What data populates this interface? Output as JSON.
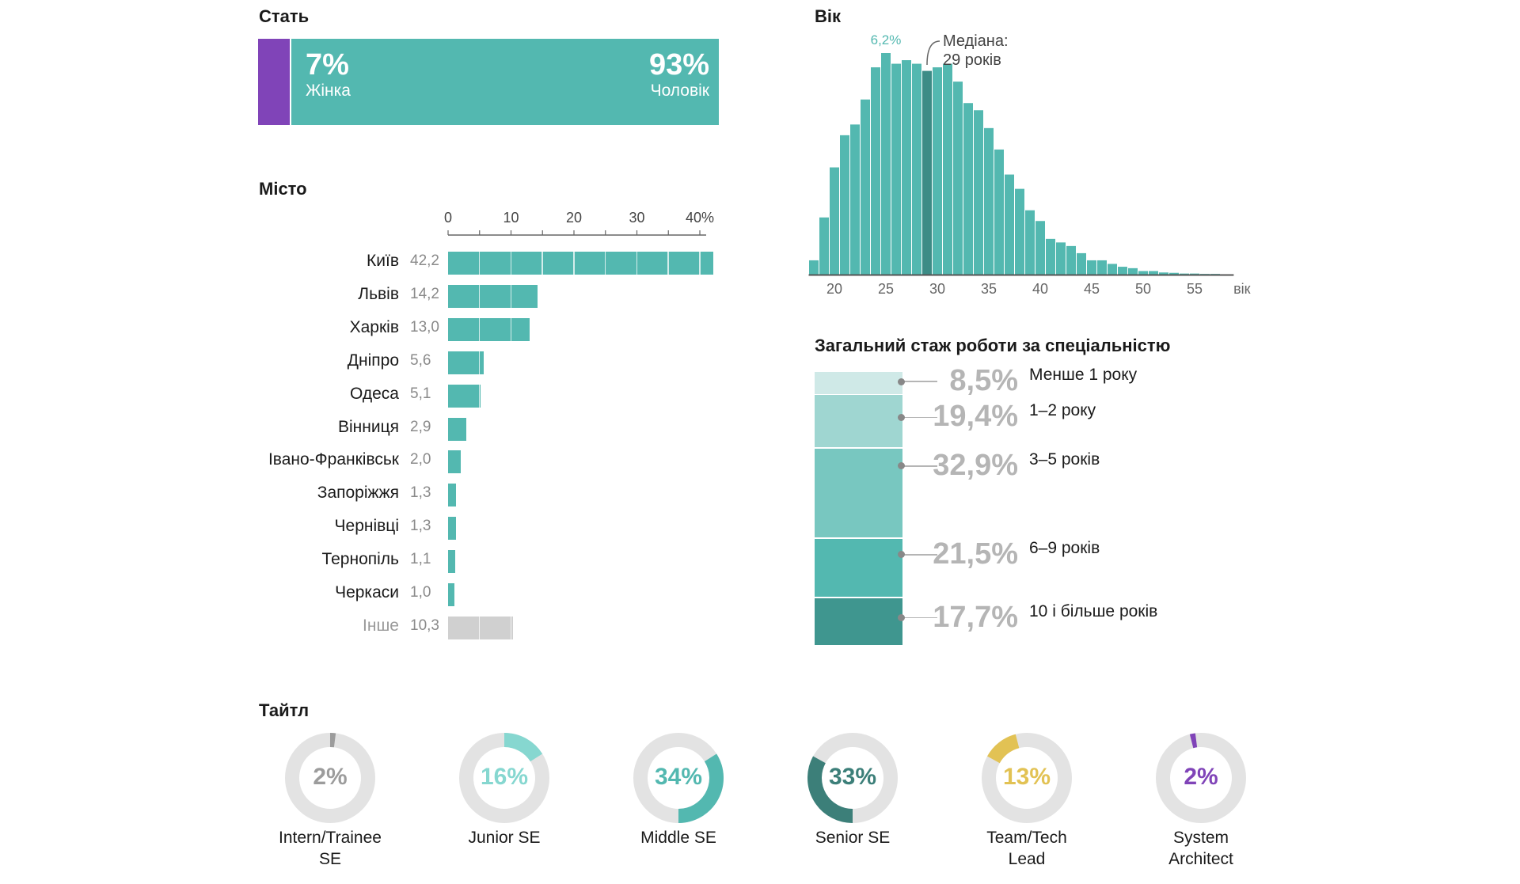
{
  "colors": {
    "teal": "#53b8b0",
    "purple": "#8044b8",
    "grey_bar": "#d0d0d0",
    "axis": "#666666",
    "median": "#3c8c86",
    "donut_track": "#e3e3e3",
    "exp": [
      "#cfe9e7",
      "#9fd6d1",
      "#78c7c0",
      "#53b8b0",
      "#3f968f"
    ],
    "titles": [
      "#9c9c9c",
      "#86d7d0",
      "#53b8b0",
      "#3c7f79",
      "#e2c254",
      "#8044b8"
    ]
  },
  "gender": {
    "title": "Стать",
    "female_pct": "7%",
    "female_label": "Жінка",
    "female_value": 7,
    "male_pct": "93%",
    "male_label": "Чоловік",
    "male_value": 93
  },
  "city": {
    "title": "Місто",
    "tick_labels": [
      "0",
      "10",
      "20",
      "30",
      "40%"
    ]
  },
  "age": {
    "title": "Вік",
    "peak_label": "6,2%",
    "median_label_1": "Медіана:",
    "median_label_2": "29 років",
    "x_tick_labels": [
      "20",
      "25",
      "30",
      "35",
      "40",
      "45",
      "50",
      "55",
      "вік"
    ]
  },
  "experience": {
    "title": "Загальний стаж роботи за спеціальністю",
    "items": [
      {
        "pct": "8,5%",
        "label": "Менше 1 року",
        "value": 8.5
      },
      {
        "pct": "19,4%",
        "label": "1–2 року",
        "value": 19.4
      },
      {
        "pct": "32,9%",
        "label": "3–5 років",
        "value": 32.9
      },
      {
        "pct": "21,5%",
        "label": "6–9 років",
        "value": 21.5
      },
      {
        "pct": "17,7%",
        "label": "10 і більше років",
        "value": 17.7
      }
    ]
  },
  "titles": {
    "title": "Тайтл",
    "items": [
      {
        "pct": "2%",
        "value": 2,
        "start": 0,
        "label_1": "Intern/Trainee",
        "label_2": "SE"
      },
      {
        "pct": "16%",
        "value": 16,
        "start": 0,
        "label_1": "Junior SE",
        "label_2": ""
      },
      {
        "pct": "34%",
        "value": 34,
        "start": 16,
        "label_1": "Middle SE",
        "label_2": ""
      },
      {
        "pct": "33%",
        "value": 33,
        "start": 50,
        "label_1": "Senior SE",
        "label_2": ""
      },
      {
        "pct": "13%",
        "value": 13,
        "start": 83,
        "label_1": "Team/Tech",
        "label_2": "Lead"
      },
      {
        "pct": "2%",
        "value": 2,
        "start": 96,
        "label_1": "System",
        "label_2": "Architect"
      }
    ]
  },
  "chart_data": [
    {
      "type": "bar",
      "title": "Місто",
      "orientation": "horizontal",
      "xlim": [
        0,
        42.2
      ],
      "categories": [
        "Київ",
        "Львів",
        "Харків",
        "Дніпро",
        "Одеса",
        "Вінниця",
        "Івано-Франківськ",
        "Запоріжжя",
        "Чернівці",
        "Тернопіль",
        "Черкаси",
        "Інше"
      ],
      "value_labels": [
        "42,2",
        "14,2",
        "13,0",
        "5,6",
        "5,1",
        "2,9",
        "2,0",
        "1,3",
        "1,3",
        "1,1",
        "1,0",
        "10,3"
      ],
      "values": [
        42.2,
        14.2,
        13.0,
        5.6,
        5.1,
        2.9,
        2.0,
        1.3,
        1.3,
        1.1,
        1.0,
        10.3
      ]
    },
    {
      "type": "bar",
      "title": "Вік",
      "xlabel": "вік",
      "xlim": [
        17.5,
        58.5
      ],
      "ylim": [
        0,
        6.2
      ],
      "median": 29,
      "x": [
        18,
        19,
        20,
        21,
        22,
        23,
        24,
        25,
        26,
        27,
        28,
        29,
        30,
        31,
        32,
        33,
        34,
        35,
        36,
        37,
        38,
        39,
        40,
        41,
        42,
        43,
        44,
        45,
        46,
        47,
        48,
        49,
        50,
        51,
        52,
        53,
        54,
        55,
        56,
        57,
        58
      ],
      "values": [
        0.4,
        1.6,
        3.0,
        3.9,
        4.2,
        4.9,
        5.8,
        6.2,
        5.9,
        6.0,
        5.9,
        5.7,
        5.8,
        5.9,
        5.4,
        4.8,
        4.6,
        4.1,
        3.5,
        2.8,
        2.4,
        1.8,
        1.5,
        1.0,
        0.9,
        0.8,
        0.6,
        0.4,
        0.4,
        0.3,
        0.22,
        0.18,
        0.1,
        0.1,
        0.06,
        0.05,
        0.03,
        0.03,
        0.02,
        0.02,
        0.01
      ]
    },
    {
      "type": "bar",
      "title": "Загальний стаж роботи за спеціальністю",
      "stacked": true,
      "categories": [
        "Менше 1 року",
        "1–2 року",
        "3–5 років",
        "6–9 років",
        "10 і більше років"
      ],
      "values": [
        8.5,
        19.4,
        32.9,
        21.5,
        17.7
      ]
    },
    {
      "type": "pie",
      "title": "Тайтл",
      "categories": [
        "Intern/Trainee SE",
        "Junior SE",
        "Middle SE",
        "Senior SE",
        "Team/Tech Lead",
        "System Architect"
      ],
      "values": [
        2,
        16,
        34,
        33,
        13,
        2
      ]
    }
  ]
}
